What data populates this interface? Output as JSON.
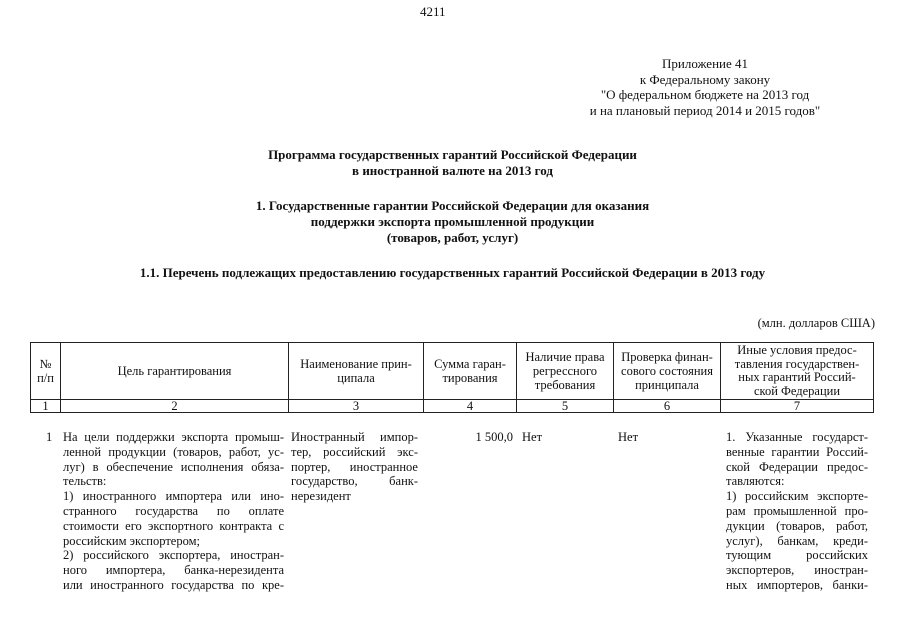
{
  "page_number": "4211",
  "appendix": [
    "Приложение 41",
    "к Федеральному закону",
    "\"О федеральном бюджете на 2013 год",
    "и на плановый период 2014 и 2015 годов\""
  ],
  "title": [
    "Программа государственных гарантий Российской Федерации",
    "в иностранной валюте на 2013 год"
  ],
  "section1": [
    "1. Государственные гарантии Российской Федерации для оказания",
    "поддержки экспорта промышленной продукции",
    "(товаров, работ, услуг)"
  ],
  "section11": "1.1. Перечень подлежащих предоставлению государственных гарантий Российской Федерации в 2013 году",
  "units": "(млн. долларов США)",
  "table": {
    "headers": [
      [
        "№",
        "п/п"
      ],
      [
        "Цель гарантирования"
      ],
      [
        "Наименование прин-",
        "ципала"
      ],
      [
        "Сумма гаран-",
        "тирования"
      ],
      [
        "Наличие права",
        "регрессного",
        "требования"
      ],
      [
        "Проверка финан-",
        "сового состояния",
        "принципала"
      ],
      [
        "Иные условия предос-",
        "тавления государствен-",
        "ных гарантий Россий-",
        "ской Федерации"
      ]
    ],
    "col_numbers": [
      "1",
      "2",
      "3",
      "4",
      "5",
      "6",
      "7"
    ],
    "row": {
      "num": "1",
      "purpose": [
        "На цели поддержки экспорта промыш-",
        "ленной продукции (товаров, работ, ус-",
        "луг) в обеспечение исполнения обяза-",
        "тельств:",
        "1) иностранного импортера или ино-",
        "странного государства по оплате",
        "стоимости его экспортного контракта с",
        "российским экспортером;",
        "2) российского экспортера, иностран-",
        "ного импортера, банка-нерезидента",
        "или иностранного государства по кре-"
      ],
      "principal": [
        "Иностранный импор-",
        "тер, российский экс-",
        "портер, иностранное",
        "государство, банк-",
        "нерезидент"
      ],
      "amount": "1 500,0",
      "regress": "Нет",
      "check": "Нет",
      "other": [
        "1. Указанные государст-",
        "венные гарантии Россий-",
        "ской Федерации предос-",
        "тавляются:",
        "1) российским экспорте-",
        "рам промышленной про-",
        "дукции (товаров, работ,",
        "услуг), банкам, креди-",
        "тующим российских",
        "экспортеров, иностран-",
        "ных импортеров, банки-"
      ]
    }
  }
}
